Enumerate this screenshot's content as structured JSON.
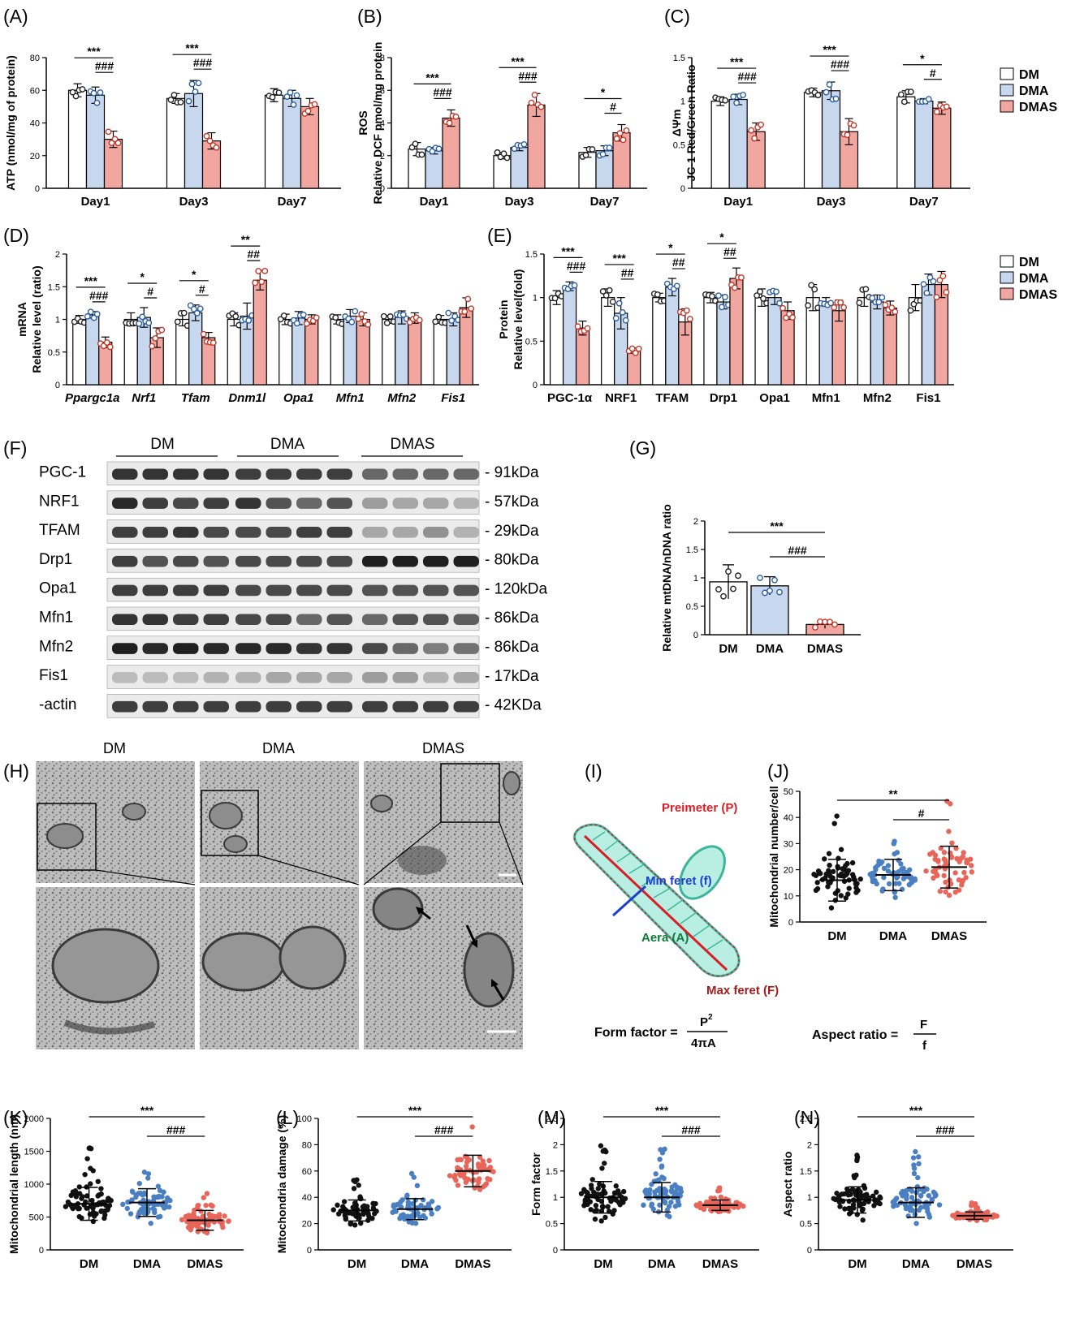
{
  "colors": {
    "DM": "#ffffff",
    "DMA": "#c7d8ee",
    "DMAS": "#f1a7a0",
    "dotDM": "#111111",
    "dotDMA": "#4a7fc1",
    "dotDMAS": "#e8655a",
    "annot_red": "#d91f26",
    "annot_blue": "#1f3fd1",
    "annot_green": "#0e7a3a",
    "annot_maroon": "#a51b1b",
    "mito_fill": "#b9efe2",
    "mito_edge": "#3cb59b"
  },
  "legend": {
    "labels": [
      "DM",
      "DMA",
      "DMAS"
    ]
  },
  "panels": {
    "A": "(A)",
    "B": "(B)",
    "C": "(C)",
    "D": "(D)",
    "E": "(E)",
    "F": "(F)",
    "G": "(G)",
    "H": "(H)",
    "I": "(I)",
    "J": "(J)",
    "K": "(K)",
    "L": "(L)",
    "M": "(M)",
    "N": "(N)"
  },
  "western": {
    "groups": [
      "DM",
      "DMA",
      "DMAS"
    ],
    "rows": [
      {
        "name": "PGC-1",
        "kda": "- 91kDa",
        "levels": [
          0.85,
          0.85,
          0.85,
          0.85,
          0.8,
          0.8,
          0.8,
          0.8,
          0.6,
          0.6,
          0.6,
          0.6
        ]
      },
      {
        "name": "NRF1",
        "kda": "- 57kDa",
        "levels": [
          0.9,
          0.8,
          0.75,
          0.8,
          0.85,
          0.7,
          0.6,
          0.7,
          0.35,
          0.3,
          0.3,
          0.25
        ]
      },
      {
        "name": "TFAM",
        "kda": "- 29kDa",
        "levels": [
          0.8,
          0.8,
          0.85,
          0.75,
          0.75,
          0.75,
          0.8,
          0.8,
          0.3,
          0.3,
          0.4,
          0.25
        ]
      },
      {
        "name": "Drp1",
        "kda": "- 80kDa",
        "levels": [
          0.8,
          0.7,
          0.75,
          0.7,
          0.75,
          0.75,
          0.75,
          0.75,
          0.95,
          0.95,
          0.95,
          0.95
        ]
      },
      {
        "name": "Opa1",
        "kda": "- 120kDa",
        "levels": [
          0.8,
          0.8,
          0.8,
          0.8,
          0.75,
          0.75,
          0.75,
          0.75,
          0.7,
          0.7,
          0.7,
          0.7
        ]
      },
      {
        "name": "Mfn1",
        "kda": "- 86kDa",
        "levels": [
          0.85,
          0.85,
          0.8,
          0.8,
          0.75,
          0.75,
          0.6,
          0.7,
          0.6,
          0.7,
          0.7,
          0.65
        ]
      },
      {
        "name": "Mfn2",
        "kda": "- 86kDa",
        "levels": [
          0.95,
          0.9,
          0.95,
          0.9,
          0.9,
          0.9,
          0.85,
          0.85,
          0.75,
          0.6,
          0.5,
          0.55
        ]
      },
      {
        "name": "Fis1",
        "kda": "- 17kDa",
        "levels": [
          0.2,
          0.2,
          0.2,
          0.25,
          0.25,
          0.3,
          0.3,
          0.3,
          0.35,
          0.35,
          0.25,
          0.3
        ]
      },
      {
        "name": "-actin",
        "kda": "- 42KDa",
        "levels": [
          0.8,
          0.8,
          0.8,
          0.8,
          0.8,
          0.8,
          0.8,
          0.8,
          0.8,
          0.8,
          0.8,
          0.8
        ]
      }
    ]
  },
  "tem": {
    "labels": [
      "DM",
      "DMA",
      "DMAS"
    ]
  },
  "schematic": {
    "perimeter": "Preimeter (P)",
    "minferet": "Min feret (f)",
    "area": "Aera (A)",
    "maxferet": "Max feret (F)",
    "ff_label": "Form factor =",
    "ff_num": "P",
    "ff_sup": "2",
    "ff_den": "4πA",
    "ar_label": "Aspect ratio =",
    "ar_num": "F",
    "ar_den": "f"
  },
  "chart_data": [
    {
      "id": "A",
      "type": "bar",
      "ylabel": "ATP (nmol/mg of protein)",
      "ylim": [
        0,
        80
      ],
      "yticks": [
        0,
        20,
        40,
        60,
        80
      ],
      "categories": [
        "Day1",
        "Day3",
        "Day7"
      ],
      "series": [
        {
          "name": "DM",
          "values": [
            60,
            55,
            57
          ],
          "sd": [
            4,
            3,
            4
          ]
        },
        {
          "name": "DMA",
          "values": [
            57,
            58,
            55
          ],
          "sd": [
            5,
            8,
            5
          ]
        },
        {
          "name": "DMAS",
          "values": [
            30,
            29,
            50
          ],
          "sd": [
            5,
            5,
            5
          ]
        }
      ],
      "sig": [
        {
          "group": 0,
          "from": 0,
          "to": 2,
          "label": "***"
        },
        {
          "group": 0,
          "from": 1,
          "to": 2,
          "label": "###"
        },
        {
          "group": 1,
          "from": 0,
          "to": 2,
          "label": "***"
        },
        {
          "group": 1,
          "from": 1,
          "to": 2,
          "label": "###"
        }
      ]
    },
    {
      "id": "B",
      "type": "bar",
      "ylabel": [
        "ROS",
        "Relative DCF pmol/mg protein"
      ],
      "ylim": [
        0,
        8
      ],
      "yticks": [
        0,
        2,
        4,
        6,
        8
      ],
      "categories": [
        "Day1",
        "Day3",
        "Day7"
      ],
      "series": [
        {
          "name": "DM",
          "values": [
            2.4,
            2.0,
            2.2
          ],
          "sd": [
            0.4,
            0.2,
            0.3
          ]
        },
        {
          "name": "DMA",
          "values": [
            2.3,
            2.5,
            2.3
          ],
          "sd": [
            0.2,
            0.2,
            0.3
          ]
        },
        {
          "name": "DMAS",
          "values": [
            4.3,
            5.1,
            3.4
          ],
          "sd": [
            0.5,
            0.7,
            0.5
          ]
        }
      ],
      "sig": [
        {
          "group": 0,
          "from": 0,
          "to": 2,
          "label": "***"
        },
        {
          "group": 0,
          "from": 1,
          "to": 2,
          "label": "###"
        },
        {
          "group": 1,
          "from": 0,
          "to": 2,
          "label": "***"
        },
        {
          "group": 1,
          "from": 1,
          "to": 2,
          "label": "###"
        },
        {
          "group": 2,
          "from": 0,
          "to": 2,
          "label": "*"
        },
        {
          "group": 2,
          "from": 1,
          "to": 2,
          "label": "#"
        }
      ]
    },
    {
      "id": "C",
      "type": "bar",
      "ylabel": [
        "ΔΨm",
        "JC-1 Red/Green Ratio"
      ],
      "ylim": [
        0,
        1.5
      ],
      "yticks": [
        0,
        0.5,
        1.0,
        1.5
      ],
      "categories": [
        "Day1",
        "Day3",
        "Day7"
      ],
      "series": [
        {
          "name": "DM",
          "values": [
            1.0,
            1.1,
            1.05
          ],
          "sd": [
            0.05,
            0.05,
            0.07
          ]
        },
        {
          "name": "DMA",
          "values": [
            1.02,
            1.12,
            1.0
          ],
          "sd": [
            0.06,
            0.1,
            0.03
          ]
        },
        {
          "name": "DMAS",
          "values": [
            0.65,
            0.65,
            0.92
          ],
          "sd": [
            0.1,
            0.15,
            0.07
          ]
        }
      ],
      "sig": [
        {
          "group": 0,
          "from": 0,
          "to": 2,
          "label": "***"
        },
        {
          "group": 0,
          "from": 1,
          "to": 2,
          "label": "###"
        },
        {
          "group": 1,
          "from": 0,
          "to": 2,
          "label": "***"
        },
        {
          "group": 1,
          "from": 1,
          "to": 2,
          "label": "###"
        },
        {
          "group": 2,
          "from": 0,
          "to": 2,
          "label": "*"
        },
        {
          "group": 2,
          "from": 1,
          "to": 2,
          "label": "#"
        }
      ]
    },
    {
      "id": "D",
      "type": "bar",
      "ylabel": [
        "mRNA",
        "Relative level (ratio)"
      ],
      "ylim": [
        0,
        2.0
      ],
      "yticks": [
        0,
        0.5,
        1.0,
        1.5,
        2.0
      ],
      "categories": [
        "Ppargc1a",
        "Nrf1",
        "Tfam",
        "Dnm1l",
        "Opa1",
        "Mfn1",
        "Mfn2",
        "Fis1"
      ],
      "italic": true,
      "series": [
        {
          "name": "DM",
          "values": [
            1.0,
            1.0,
            1.0,
            1.0,
            1.0,
            1.0,
            1.0,
            1.0
          ],
          "sd": [
            0.06,
            0.1,
            0.1,
            0.1,
            0.08,
            0.07,
            0.06,
            0.06
          ]
        },
        {
          "name": "DMA",
          "values": [
            1.07,
            1.03,
            1.1,
            1.05,
            1.02,
            1.05,
            1.03,
            1.0
          ],
          "sd": [
            0.05,
            0.15,
            0.12,
            0.2,
            0.1,
            0.1,
            0.1,
            0.1
          ]
        },
        {
          "name": "DMAS",
          "values": [
            0.65,
            0.72,
            0.72,
            1.6,
            1.0,
            1.0,
            1.02,
            1.18
          ],
          "sd": [
            0.08,
            0.15,
            0.08,
            0.15,
            0.07,
            0.1,
            0.08,
            0.15
          ]
        }
      ],
      "sig": [
        {
          "group": 0,
          "from": 0,
          "to": 2,
          "label": "***"
        },
        {
          "group": 0,
          "from": 1,
          "to": 2,
          "label": "###"
        },
        {
          "group": 1,
          "from": 0,
          "to": 2,
          "label": "*"
        },
        {
          "group": 1,
          "from": 1,
          "to": 2,
          "label": "#"
        },
        {
          "group": 2,
          "from": 0,
          "to": 2,
          "label": "*"
        },
        {
          "group": 2,
          "from": 1,
          "to": 2,
          "label": "#"
        },
        {
          "group": 3,
          "from": 0,
          "to": 2,
          "label": "**"
        },
        {
          "group": 3,
          "from": 1,
          "to": 2,
          "label": "##"
        }
      ]
    },
    {
      "id": "E",
      "type": "bar",
      "ylabel": [
        "Protein",
        "Relative level(fold)"
      ],
      "ylim": [
        0,
        1.5
      ],
      "yticks": [
        0,
        0.5,
        1.0,
        1.5
      ],
      "categories": [
        "PGC-1α",
        "NRF1",
        "TFAM",
        "Drp1",
        "Opa1",
        "Mfn1",
        "Mfn2",
        "Fis1"
      ],
      "series": [
        {
          "name": "DM",
          "values": [
            1.0,
            1.0,
            1.0,
            1.0,
            1.0,
            1.0,
            1.0,
            1.0
          ],
          "sd": [
            0.08,
            0.1,
            0.05,
            0.06,
            0.1,
            0.15,
            0.1,
            0.15
          ]
        },
        {
          "name": "DMA",
          "values": [
            1.13,
            0.82,
            1.12,
            0.95,
            1.0,
            0.95,
            0.95,
            1.15
          ],
          "sd": [
            0.05,
            0.18,
            0.1,
            0.08,
            0.08,
            0.05,
            0.08,
            0.12
          ]
        },
        {
          "name": "DMAS",
          "values": [
            0.65,
            0.39,
            0.72,
            1.22,
            0.85,
            0.85,
            0.88,
            1.15
          ],
          "sd": [
            0.08,
            0.03,
            0.15,
            0.12,
            0.1,
            0.12,
            0.08,
            0.15
          ]
        }
      ],
      "sig": [
        {
          "group": 0,
          "from": 0,
          "to": 2,
          "label": "***"
        },
        {
          "group": 0,
          "from": 1,
          "to": 2,
          "label": "###"
        },
        {
          "group": 1,
          "from": 0,
          "to": 2,
          "label": "***"
        },
        {
          "group": 1,
          "from": 1,
          "to": 2,
          "label": "##"
        },
        {
          "group": 2,
          "from": 0,
          "to": 2,
          "label": "*"
        },
        {
          "group": 2,
          "from": 1,
          "to": 2,
          "label": "##"
        },
        {
          "group": 3,
          "from": 0,
          "to": 2,
          "label": "*"
        },
        {
          "group": 3,
          "from": 1,
          "to": 2,
          "label": "##"
        }
      ]
    },
    {
      "id": "G",
      "type": "bar",
      "ylabel": "Relative mtDNA/nDNA ratio",
      "ylim": [
        0,
        2.0
      ],
      "yticks": [
        0,
        0.5,
        1.0,
        1.5,
        2.0
      ],
      "categories": [
        "DM",
        "DMA",
        "DMAS"
      ],
      "values": [
        0.93,
        0.86,
        0.18
      ],
      "sd": [
        0.3,
        0.16,
        0.07
      ],
      "sig": [
        {
          "from": 0,
          "to": 2,
          "label": "***"
        },
        {
          "from": 1,
          "to": 2,
          "label": "###"
        }
      ]
    },
    {
      "id": "J",
      "type": "scatter",
      "ylabel": "Mitochondrial number/cell",
      "ylim": [
        0,
        50
      ],
      "yticks": [
        0,
        10,
        20,
        30,
        40,
        50
      ],
      "categories": [
        "DM",
        "DMA",
        "DMAS"
      ],
      "mean": [
        16,
        18,
        21
      ],
      "sd": [
        8,
        6,
        8
      ],
      "n": 60,
      "sig": [
        {
          "from": 0,
          "to": 2,
          "label": "**"
        },
        {
          "from": 1,
          "to": 2,
          "label": "#"
        }
      ]
    },
    {
      "id": "K",
      "type": "scatter",
      "ylabel": "Mitochondrial length (nm)",
      "ylim": [
        0,
        2000
      ],
      "yticks": [
        0,
        500,
        1000,
        1500,
        2000
      ],
      "categories": [
        "DM",
        "DMA",
        "DMAS"
      ],
      "mean": [
        700,
        720,
        450
      ],
      "sd": [
        250,
        210,
        150
      ],
      "n": 70,
      "sig": [
        {
          "from": 0,
          "to": 2,
          "label": "***"
        },
        {
          "from": 1,
          "to": 2,
          "label": "###"
        }
      ]
    },
    {
      "id": "L",
      "type": "scatter",
      "ylabel": "Mitochondria damage (%)",
      "ylim": [
        0,
        100
      ],
      "yticks": [
        0,
        20,
        40,
        60,
        80,
        100
      ],
      "categories": [
        "DM",
        "DMA",
        "DMAS"
      ],
      "mean": [
        30,
        31,
        60
      ],
      "sd": [
        8,
        8,
        12
      ],
      "n": 55,
      "sig": [
        {
          "from": 0,
          "to": 2,
          "label": "***"
        },
        {
          "from": 1,
          "to": 2,
          "label": "###"
        }
      ]
    },
    {
      "id": "M",
      "type": "scatter",
      "ylabel": "Form factor",
      "ylim": [
        0,
        2.5
      ],
      "yticks": [
        0,
        0.5,
        1.0,
        1.5,
        2.0,
        2.5
      ],
      "categories": [
        "DM",
        "DMA",
        "DMAS"
      ],
      "mean": [
        1.0,
        1.0,
        0.85
      ],
      "sd": [
        0.3,
        0.28,
        0.1
      ],
      "n": 70,
      "sig": [
        {
          "from": 0,
          "to": 2,
          "label": "***"
        },
        {
          "from": 1,
          "to": 2,
          "label": "###"
        }
      ]
    },
    {
      "id": "N",
      "type": "scatter",
      "ylabel": "Aspect ratio",
      "ylim": [
        0,
        2.5
      ],
      "yticks": [
        0,
        0.5,
        1.0,
        1.5,
        2.0,
        2.5
      ],
      "categories": [
        "DM",
        "DMA",
        "DMAS"
      ],
      "mean": [
        0.95,
        0.9,
        0.65
      ],
      "sd": [
        0.25,
        0.28,
        0.07
      ],
      "n": 70,
      "sig": [
        {
          "from": 0,
          "to": 2,
          "label": "***"
        },
        {
          "from": 1,
          "to": 2,
          "label": "###"
        }
      ]
    }
  ]
}
